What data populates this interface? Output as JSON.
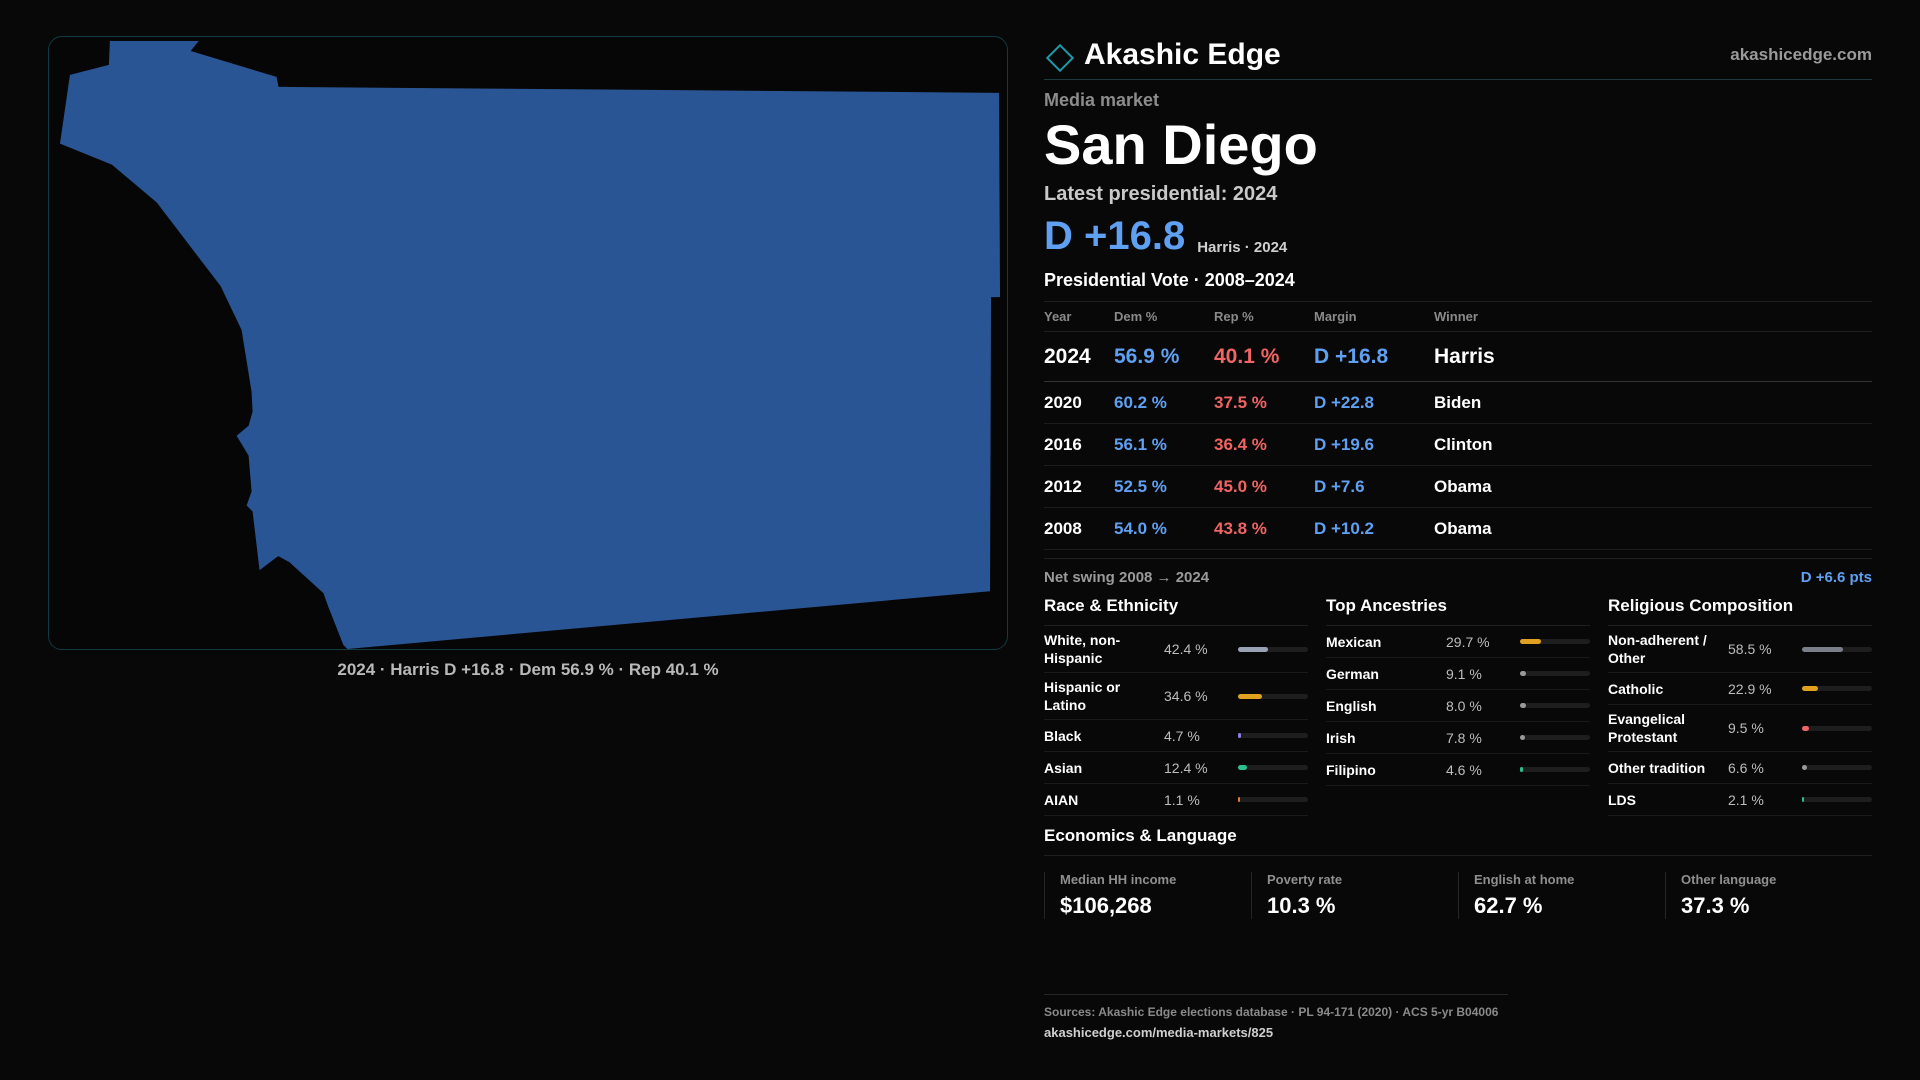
{
  "map": {
    "caption": "2024 · Harris D +16.8 · Dem 56.9 % · Rep 40.1 %",
    "fill_color": "#2a5594"
  },
  "brand": {
    "name": "Akashic Edge",
    "url": "akashicedge.com",
    "icon": "diamond-icon"
  },
  "header": {
    "kicker": "Media market",
    "title": "San Diego",
    "latest_label": "Latest presidential: 2024",
    "margin": "D +16.8",
    "margin_sub": "Harris · 2024"
  },
  "votes": {
    "title": "Presidential Vote · 2008–2024",
    "columns": [
      "Year",
      "Dem %",
      "Rep %",
      "Margin",
      "Winner"
    ],
    "rows": [
      {
        "year": "2024",
        "dem": "56.9 %",
        "rep": "40.1 %",
        "margin": "D +16.8",
        "winner": "Harris"
      },
      {
        "year": "2020",
        "dem": "60.2 %",
        "rep": "37.5 %",
        "margin": "D +22.8",
        "winner": "Biden"
      },
      {
        "year": "2016",
        "dem": "56.1 %",
        "rep": "36.4 %",
        "margin": "D +19.6",
        "winner": "Clinton"
      },
      {
        "year": "2012",
        "dem": "52.5 %",
        "rep": "45.0 %",
        "margin": "D +7.6",
        "winner": "Obama"
      },
      {
        "year": "2008",
        "dem": "54.0 %",
        "rep": "43.8 %",
        "margin": "D +10.2",
        "winner": "Obama"
      }
    ],
    "swing_label": "Net swing 2008 → 2024",
    "swing_value": "D +6.6 pts"
  },
  "race": {
    "title": "Race & Ethnicity",
    "items": [
      {
        "label": "White, non-Hispanic",
        "value": "42.4 %",
        "pct": 42.4,
        "color": "#9aa3b5"
      },
      {
        "label": "Hispanic or Latino",
        "value": "34.6 %",
        "pct": 34.6,
        "color": "#e0a020"
      },
      {
        "label": "Black",
        "value": "4.7 %",
        "pct": 4.7,
        "color": "#8a7ee0"
      },
      {
        "label": "Asian",
        "value": "12.4 %",
        "pct": 12.4,
        "color": "#2bbf8f"
      },
      {
        "label": "AIAN",
        "value": "1.1 %",
        "pct": 1.1,
        "color": "#e07a40"
      }
    ]
  },
  "ancestry": {
    "title": "Top Ancestries",
    "items": [
      {
        "label": "Mexican",
        "value": "29.7 %",
        "pct": 29.7,
        "color": "#e0a020"
      },
      {
        "label": "German",
        "value": "9.1 %",
        "pct": 9.1,
        "color": "#9a9a9a"
      },
      {
        "label": "English",
        "value": "8.0 %",
        "pct": 8.0,
        "color": "#9a9a9a"
      },
      {
        "label": "Irish",
        "value": "7.8 %",
        "pct": 7.8,
        "color": "#9a9a9a"
      },
      {
        "label": "Filipino",
        "value": "4.6 %",
        "pct": 4.6,
        "color": "#2bbf8f"
      }
    ]
  },
  "religion": {
    "title": "Religious Composition",
    "items": [
      {
        "label": "Non-adherent / Other",
        "value": "58.5 %",
        "pct": 58.5,
        "color": "#7a7f8a"
      },
      {
        "label": "Catholic",
        "value": "22.9 %",
        "pct": 22.9,
        "color": "#e0a020"
      },
      {
        "label": "Evangelical Protestant",
        "value": "9.5 %",
        "pct": 9.5,
        "color": "#f06464"
      },
      {
        "label": "Other tradition",
        "value": "6.6 %",
        "pct": 6.6,
        "color": "#9a9a9a"
      },
      {
        "label": "LDS",
        "value": "2.1 %",
        "pct": 2.1,
        "color": "#2bbf8f"
      }
    ]
  },
  "economics": {
    "title": "Economics & Language",
    "stats": [
      {
        "label": "Median HH income",
        "value": "$106,268"
      },
      {
        "label": "Poverty rate",
        "value": "10.3 %"
      },
      {
        "label": "English at home",
        "value": "62.7 %"
      },
      {
        "label": "Other language",
        "value": "37.3 %"
      }
    ]
  },
  "footer": {
    "sources": "Sources: Akashic Edge elections database · PL 94-171 (2020) · ACS 5-yr B04006",
    "link": "akashicedge.com/media-markets/825"
  }
}
